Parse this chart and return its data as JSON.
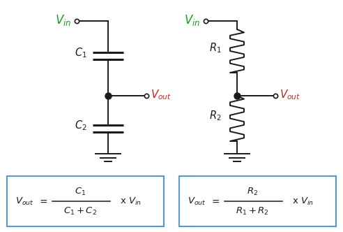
{
  "background_color": "#ffffff",
  "green_color": "#1a9e1a",
  "red_color": "#cc2222",
  "black_color": "#1a1a1a",
  "blue_color": "#5599cc",
  "line_width": 1.4,
  "cap_plate_lw": 2.2,
  "fig_width": 4.92,
  "fig_height": 3.32,
  "dpi": 100
}
